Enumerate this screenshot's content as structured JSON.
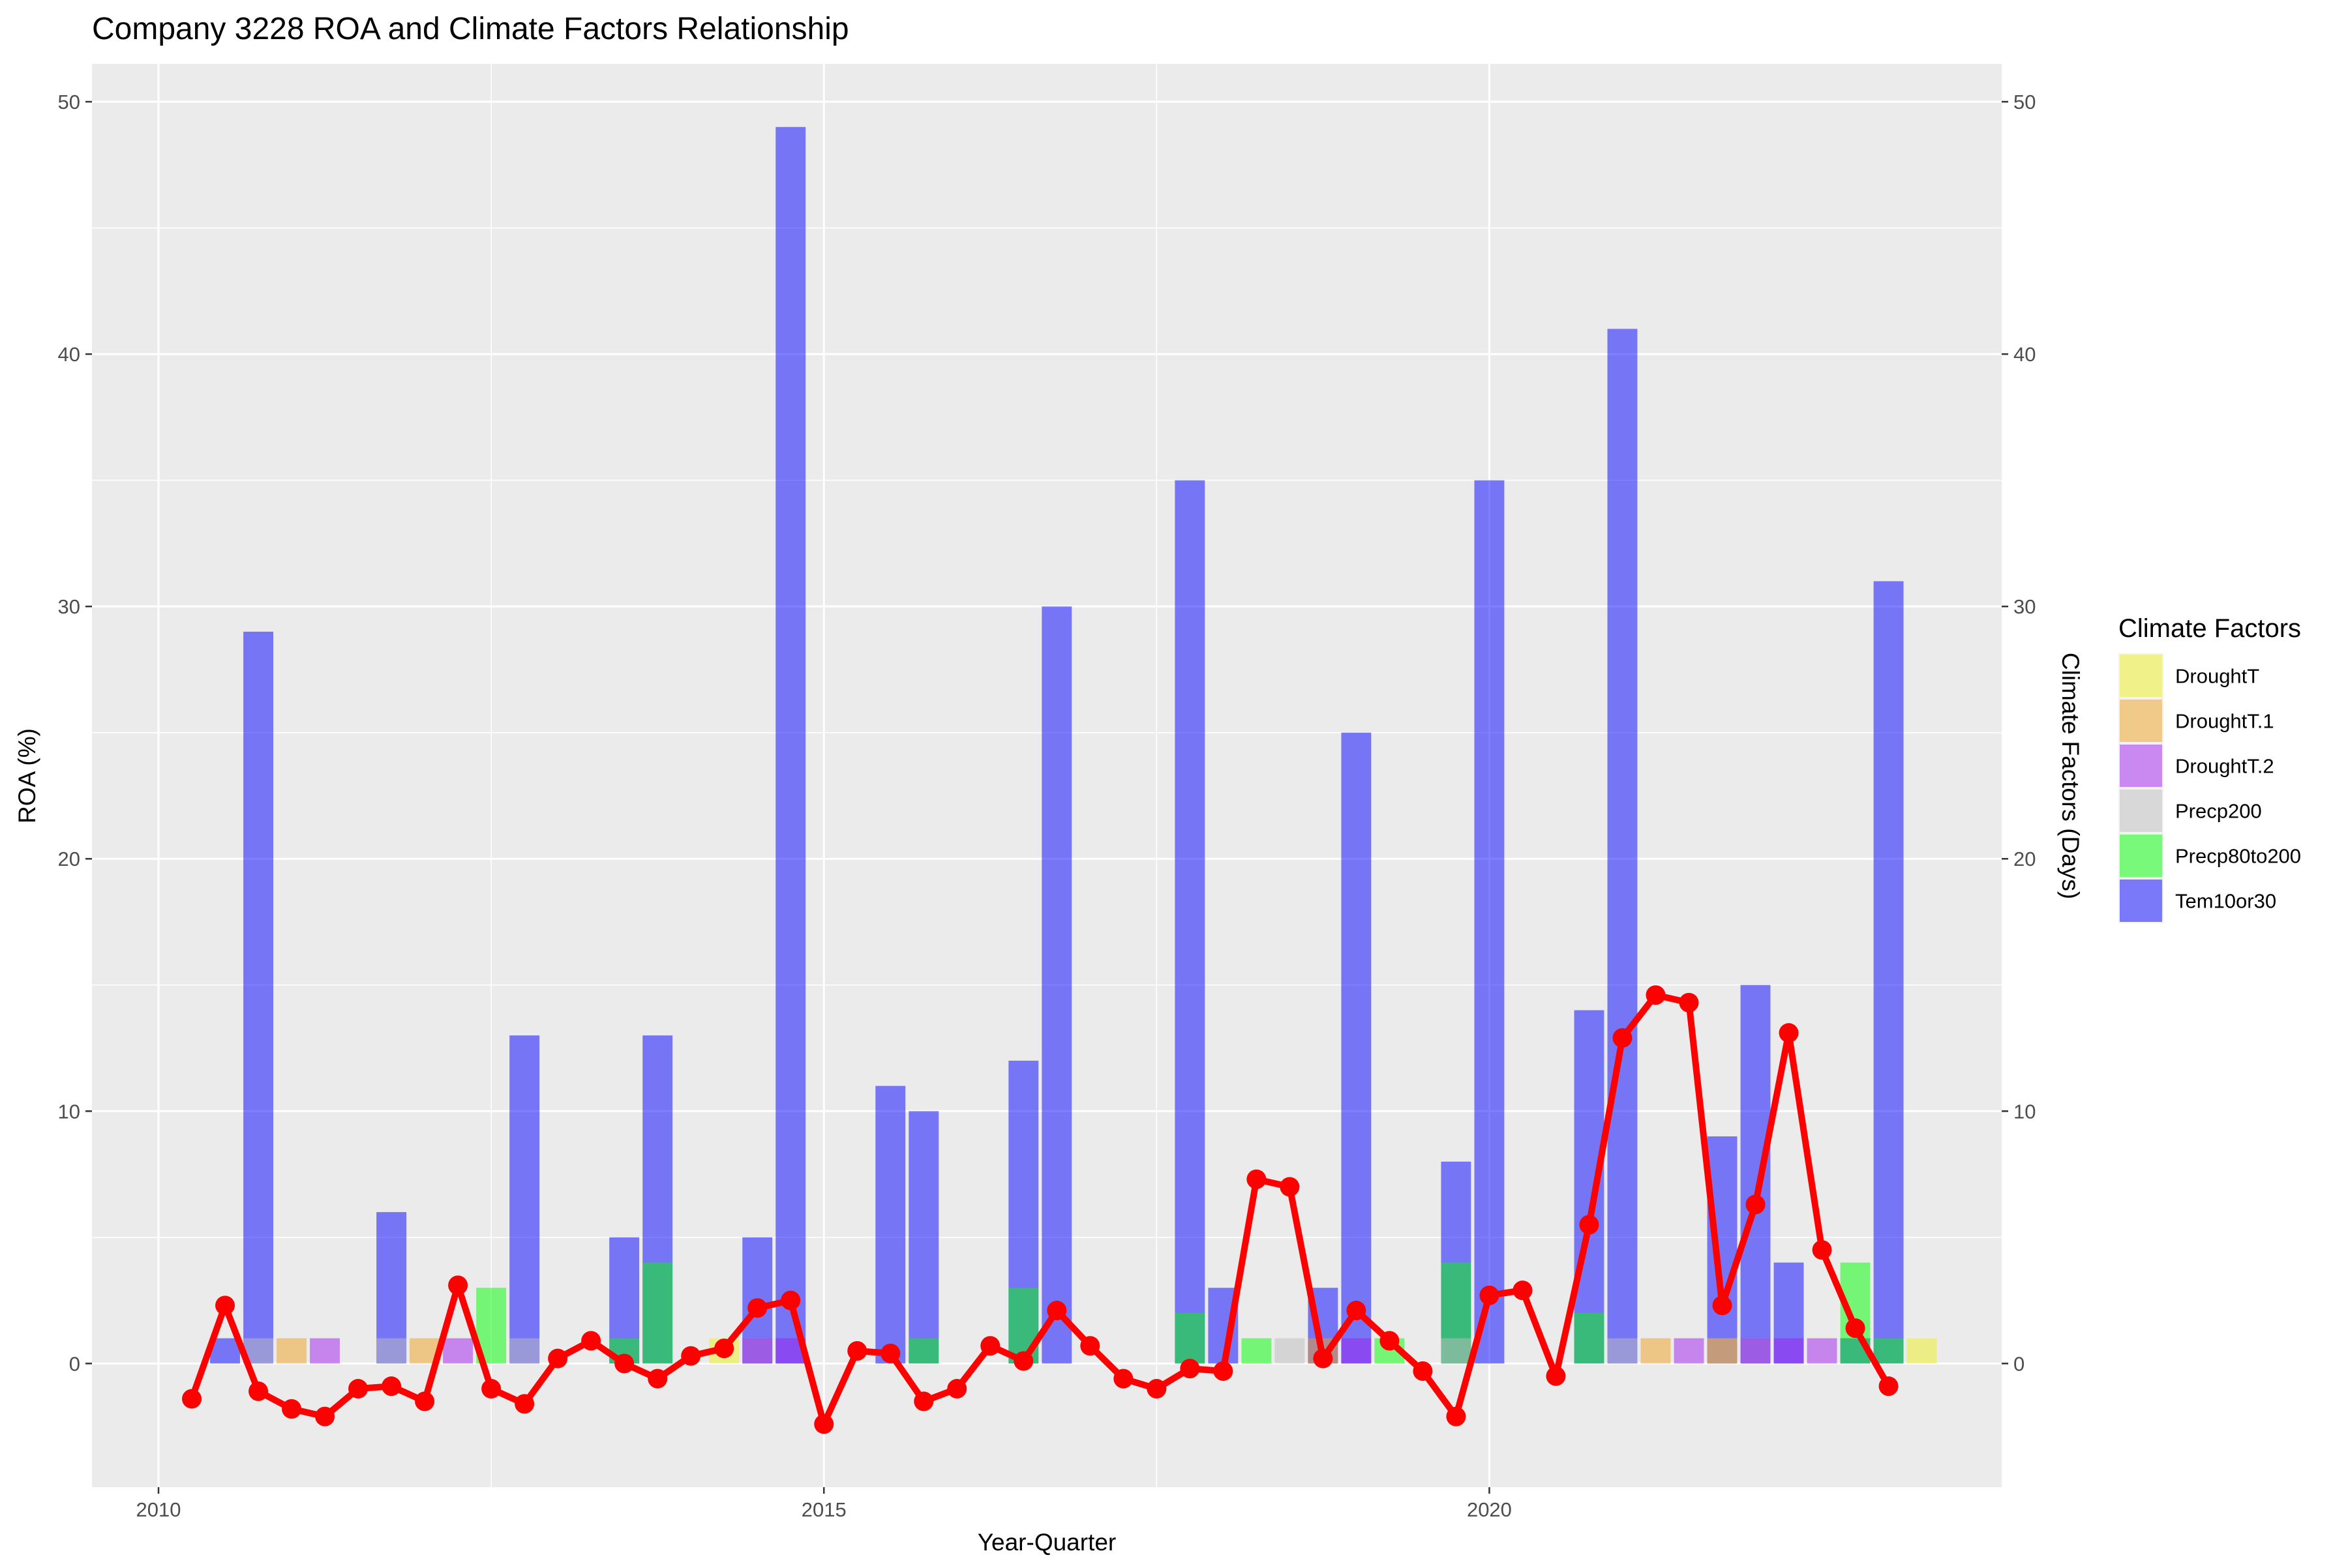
{
  "chart_data": {
    "type": "bar",
    "title": "Company 3228 ROA and Climate Factors Relationship",
    "xlabel": "Year-Quarter",
    "ylabel": "ROA (%)",
    "y2label": "Climate Factors (Days)",
    "xlim": [
      2009.5,
      2023.85
    ],
    "ylim": [
      -4.9,
      51.5
    ],
    "x_ticks": [
      2010,
      2015,
      2020
    ],
    "y_ticks": [
      0,
      10,
      20,
      30,
      40,
      50
    ],
    "grid": true,
    "legend": {
      "title": "Climate Factors",
      "position": "right",
      "entries": [
        {
          "name": "DroughtT",
          "color": "#F0F020"
        },
        {
          "name": "DroughtT.1",
          "color": "#F0A020"
        },
        {
          "name": "DroughtT.2",
          "color": "#A020F0"
        },
        {
          "name": "Precp200",
          "color": "#BEBEBE"
        },
        {
          "name": "Precp80to200",
          "color": "#00FF00"
        },
        {
          "name": "Tem10or30",
          "color": "#0000FF"
        }
      ]
    },
    "bar_series": [
      {
        "name": "Tem10or30",
        "color": "#0000FF",
        "points": [
          {
            "x": 2010.5,
            "y": 1
          },
          {
            "x": 2010.75,
            "y": 29
          },
          {
            "x": 2011.75,
            "y": 6
          },
          {
            "x": 2012.75,
            "y": 13
          },
          {
            "x": 2013.5,
            "y": 5
          },
          {
            "x": 2013.75,
            "y": 13
          },
          {
            "x": 2014.5,
            "y": 5
          },
          {
            "x": 2014.75,
            "y": 49
          },
          {
            "x": 2015.5,
            "y": 11
          },
          {
            "x": 2015.75,
            "y": 10
          },
          {
            "x": 2016.5,
            "y": 12
          },
          {
            "x": 2016.75,
            "y": 30
          },
          {
            "x": 2017.75,
            "y": 35
          },
          {
            "x": 2018.0,
            "y": 3
          },
          {
            "x": 2018.75,
            "y": 3
          },
          {
            "x": 2019.0,
            "y": 25
          },
          {
            "x": 2019.75,
            "y": 8
          },
          {
            "x": 2020.0,
            "y": 35
          },
          {
            "x": 2020.75,
            "y": 14
          },
          {
            "x": 2021.0,
            "y": 41
          },
          {
            "x": 2021.75,
            "y": 9
          },
          {
            "x": 2022.0,
            "y": 15
          },
          {
            "x": 2022.25,
            "y": 4
          },
          {
            "x": 2022.75,
            "y": 1
          },
          {
            "x": 2023.0,
            "y": 31
          }
        ]
      },
      {
        "name": "Precp80to200",
        "color": "#00FF00",
        "points": [
          {
            "x": 2012.5,
            "y": 3
          },
          {
            "x": 2013.5,
            "y": 1
          },
          {
            "x": 2013.75,
            "y": 4
          },
          {
            "x": 2015.75,
            "y": 1
          },
          {
            "x": 2016.5,
            "y": 3
          },
          {
            "x": 2017.75,
            "y": 2
          },
          {
            "x": 2018.25,
            "y": 1
          },
          {
            "x": 2019.25,
            "y": 1
          },
          {
            "x": 2019.75,
            "y": 4
          },
          {
            "x": 2020.75,
            "y": 2
          },
          {
            "x": 2022.75,
            "y": 4
          },
          {
            "x": 2023.0,
            "y": 1
          }
        ]
      },
      {
        "name": "Precp200",
        "color": "#BEBEBE",
        "points": [
          {
            "x": 2010.75,
            "y": 1
          },
          {
            "x": 2011.75,
            "y": 1
          },
          {
            "x": 2012.75,
            "y": 1
          },
          {
            "x": 2014.5,
            "y": 1
          },
          {
            "x": 2018.5,
            "y": 1
          },
          {
            "x": 2019.75,
            "y": 1
          },
          {
            "x": 2021.0,
            "y": 1
          },
          {
            "x": 2021.75,
            "y": 1
          },
          {
            "x": 2022.0,
            "y": 1
          }
        ]
      },
      {
        "name": "DroughtT",
        "color": "#F0F020",
        "points": [
          {
            "x": 2014.25,
            "y": 1
          },
          {
            "x": 2023.25,
            "y": 1
          }
        ]
      },
      {
        "name": "DroughtT.1",
        "color": "#F0A020",
        "points": [
          {
            "x": 2011.0,
            "y": 1
          },
          {
            "x": 2012.0,
            "y": 1
          },
          {
            "x": 2018.75,
            "y": 1
          },
          {
            "x": 2021.25,
            "y": 1
          },
          {
            "x": 2021.75,
            "y": 1
          }
        ]
      },
      {
        "name": "DroughtT.2",
        "color": "#A020F0",
        "points": [
          {
            "x": 2011.25,
            "y": 1
          },
          {
            "x": 2012.25,
            "y": 1
          },
          {
            "x": 2014.5,
            "y": 1
          },
          {
            "x": 2014.75,
            "y": 1
          },
          {
            "x": 2019.0,
            "y": 1
          },
          {
            "x": 2021.5,
            "y": 1
          },
          {
            "x": 2022.0,
            "y": 1
          },
          {
            "x": 2022.25,
            "y": 1
          },
          {
            "x": 2022.5,
            "y": 1
          }
        ]
      }
    ],
    "line_series": {
      "name": "ROA",
      "color": "#FF0000",
      "points": [
        {
          "x": 2010.25,
          "y": -1.4
        },
        {
          "x": 2010.5,
          "y": 2.3
        },
        {
          "x": 2010.75,
          "y": -1.1
        },
        {
          "x": 2011.0,
          "y": -1.8
        },
        {
          "x": 2011.25,
          "y": -2.1
        },
        {
          "x": 2011.5,
          "y": -1.0
        },
        {
          "x": 2011.75,
          "y": -0.9
        },
        {
          "x": 2012.0,
          "y": -1.5
        },
        {
          "x": 2012.25,
          "y": 3.1
        },
        {
          "x": 2012.5,
          "y": -1.0
        },
        {
          "x": 2012.75,
          "y": -1.6
        },
        {
          "x": 2013.0,
          "y": 0.2
        },
        {
          "x": 2013.25,
          "y": 0.9
        },
        {
          "x": 2013.5,
          "y": 0.0
        },
        {
          "x": 2013.75,
          "y": -0.6
        },
        {
          "x": 2014.0,
          "y": 0.3
        },
        {
          "x": 2014.25,
          "y": 0.6
        },
        {
          "x": 2014.5,
          "y": 2.2
        },
        {
          "x": 2014.75,
          "y": 2.5
        },
        {
          "x": 2015.0,
          "y": -2.4
        },
        {
          "x": 2015.25,
          "y": 0.5
        },
        {
          "x": 2015.5,
          "y": 0.4
        },
        {
          "x": 2015.75,
          "y": -1.5
        },
        {
          "x": 2016.0,
          "y": -1.0
        },
        {
          "x": 2016.25,
          "y": 0.7
        },
        {
          "x": 2016.5,
          "y": 0.1
        },
        {
          "x": 2016.75,
          "y": 2.1
        },
        {
          "x": 2017.0,
          "y": 0.7
        },
        {
          "x": 2017.25,
          "y": -0.6
        },
        {
          "x": 2017.5,
          "y": -1.0
        },
        {
          "x": 2017.75,
          "y": -0.2
        },
        {
          "x": 2018.0,
          "y": -0.3
        },
        {
          "x": 2018.25,
          "y": 7.3
        },
        {
          "x": 2018.5,
          "y": 7.0
        },
        {
          "x": 2018.75,
          "y": 0.2
        },
        {
          "x": 2019.0,
          "y": 2.1
        },
        {
          "x": 2019.25,
          "y": 0.9
        },
        {
          "x": 2019.5,
          "y": -0.3
        },
        {
          "x": 2019.75,
          "y": -2.1
        },
        {
          "x": 2020.0,
          "y": 2.7
        },
        {
          "x": 2020.25,
          "y": 2.9
        },
        {
          "x": 2020.5,
          "y": -0.5
        },
        {
          "x": 2020.75,
          "y": 5.5
        },
        {
          "x": 2021.0,
          "y": 12.9
        },
        {
          "x": 2021.25,
          "y": 14.6
        },
        {
          "x": 2021.5,
          "y": 14.3
        },
        {
          "x": 2021.75,
          "y": 2.3
        },
        {
          "x": 2022.0,
          "y": 6.3
        },
        {
          "x": 2022.25,
          "y": 13.1
        },
        {
          "x": 2022.5,
          "y": 4.5
        },
        {
          "x": 2022.75,
          "y": 1.4
        },
        {
          "x": 2023.0,
          "y": -0.9
        }
      ]
    }
  }
}
